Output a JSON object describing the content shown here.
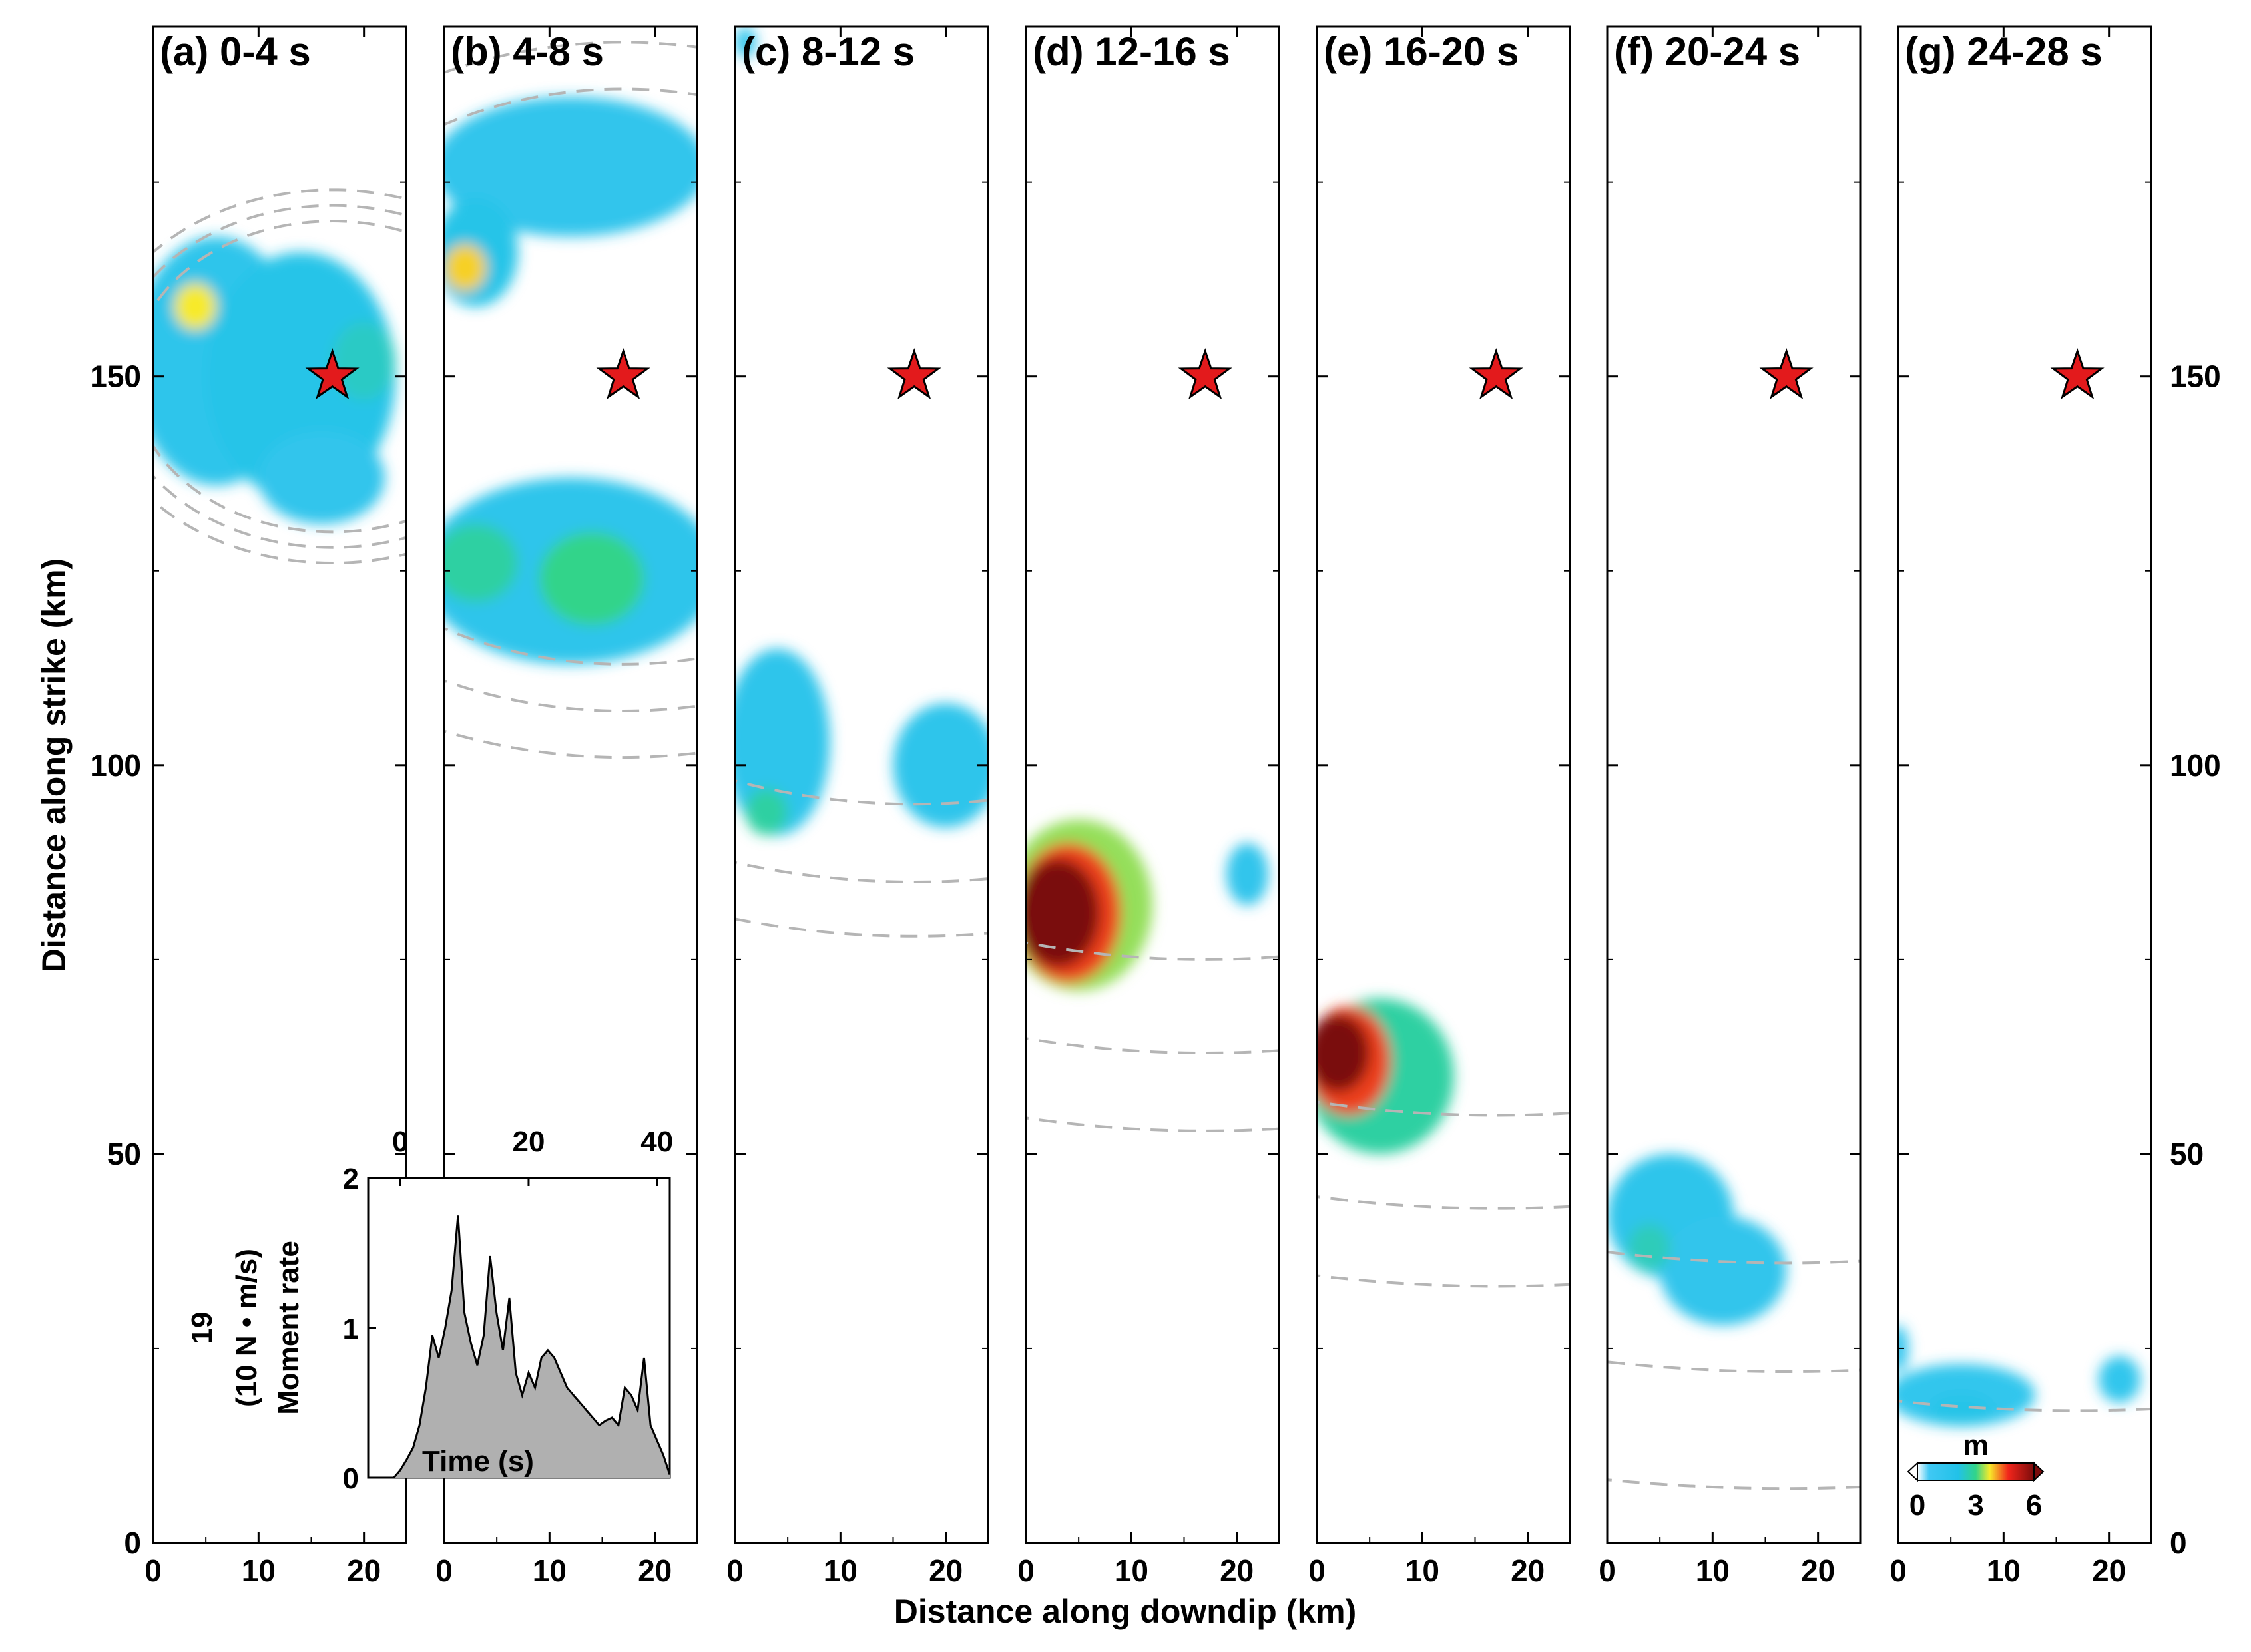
{
  "chart_data": {
    "type": "heatmap",
    "description_note": "",
    "xlabel": "Distance along downdip (km)",
    "ylabel": "Distance along strike (km)",
    "xlim": [
      0,
      24
    ],
    "ylim": [
      0,
      195
    ],
    "x_ticks": [
      0,
      10,
      20
    ],
    "y_ticks": [
      0,
      50,
      100,
      150
    ],
    "hypocenter": {
      "x": 17,
      "y": 150,
      "marker": "star",
      "color": "#e31a1c"
    },
    "colorbar": {
      "label": "m",
      "ticks": [
        "0",
        "3",
        "6"
      ],
      "range": [
        0,
        6
      ]
    },
    "panels": [
      {
        "label": "(a) 0-4 s",
        "patches": [
          {
            "x": 6,
            "y": 152,
            "rx": 8,
            "ry": 16,
            "slip": 1.0
          },
          {
            "x": 14,
            "y": 150,
            "rx": 9,
            "ry": 16,
            "slip": 1.2
          },
          {
            "x": 4,
            "y": 159,
            "rx": 2,
            "ry": 3,
            "slip": 3.0
          },
          {
            "x": 16,
            "y": 137,
            "rx": 6,
            "ry": 6,
            "slip": 0.9
          },
          {
            "x": 20,
            "y": 152,
            "rx": 3,
            "ry": 5,
            "slip": 1.5
          }
        ],
        "rupture_fronts": [
          {
            "cx": 17,
            "cy": 150,
            "r": 20
          },
          {
            "cx": 17,
            "cy": 150,
            "r": 22
          },
          {
            "cx": 17,
            "cy": 150,
            "r": 24
          }
        ]
      },
      {
        "label": "(b) 4-8 s",
        "patches": [
          {
            "x": 12,
            "y": 177,
            "rx": 13,
            "ry": 9,
            "slip": 0.9
          },
          {
            "x": 3,
            "y": 166,
            "rx": 4,
            "ry": 7,
            "slip": 1.2
          },
          {
            "x": 2,
            "y": 164,
            "rx": 2,
            "ry": 3,
            "slip": 3.2
          },
          {
            "x": 12,
            "y": 125,
            "rx": 14,
            "ry": 12,
            "slip": 1.0
          },
          {
            "x": 3,
            "y": 126,
            "rx": 4,
            "ry": 5,
            "slip": 1.8
          },
          {
            "x": 14,
            "y": 124,
            "rx": 5,
            "ry": 6,
            "slip": 2.0
          }
        ],
        "rupture_fronts": [
          {
            "cx": 17,
            "cy": 150,
            "r": 37
          },
          {
            "cx": 17,
            "cy": 150,
            "r": 43
          },
          {
            "cx": 17,
            "cy": 150,
            "r": 49
          }
        ]
      },
      {
        "label": "(c) 8-12 s",
        "patches": [
          {
            "x": 4,
            "y": 103,
            "rx": 5,
            "ry": 12,
            "slip": 1.0
          },
          {
            "x": 20,
            "y": 100,
            "rx": 5,
            "ry": 8,
            "slip": 1.0
          },
          {
            "x": 3,
            "y": 94,
            "rx": 2,
            "ry": 3,
            "slip": 1.8
          },
          {
            "x": 1,
            "y": 193,
            "rx": 1,
            "ry": 2,
            "slip": 0.8
          }
        ],
        "rupture_fronts": [
          {
            "cx": 17,
            "cy": 150,
            "r": 55
          },
          {
            "cx": 17,
            "cy": 150,
            "r": 65
          },
          {
            "cx": 17,
            "cy": 150,
            "r": 72
          }
        ]
      },
      {
        "label": "(d) 12-16 s",
        "patches": [
          {
            "x": 5,
            "y": 82,
            "rx": 7,
            "ry": 11,
            "slip": 2.5
          },
          {
            "x": 4,
            "y": 81,
            "rx": 5,
            "ry": 9,
            "slip": 4.5
          },
          {
            "x": 3,
            "y": 81,
            "rx": 4,
            "ry": 7,
            "slip": 6.0
          },
          {
            "x": 21,
            "y": 86,
            "rx": 2,
            "ry": 4,
            "slip": 0.9
          }
        ],
        "rupture_fronts": [
          {
            "cx": 17,
            "cy": 150,
            "r": 75
          },
          {
            "cx": 17,
            "cy": 150,
            "r": 87
          },
          {
            "cx": 17,
            "cy": 150,
            "r": 97
          }
        ]
      },
      {
        "label": "(e) 16-20 s",
        "patches": [
          {
            "x": 6,
            "y": 60,
            "rx": 7,
            "ry": 10,
            "slip": 1.8
          },
          {
            "x": 3,
            "y": 62,
            "rx": 4,
            "ry": 7,
            "slip": 4.5
          },
          {
            "x": 2,
            "y": 63,
            "rx": 3,
            "ry": 5,
            "slip": 6.0
          }
        ],
        "rupture_fronts": [
          {
            "cx": 17,
            "cy": 150,
            "r": 95
          },
          {
            "cx": 17,
            "cy": 150,
            "r": 107
          },
          {
            "cx": 17,
            "cy": 150,
            "r": 117
          }
        ]
      },
      {
        "label": "(f) 20-24 s",
        "patches": [
          {
            "x": 6,
            "y": 42,
            "rx": 6,
            "ry": 8,
            "slip": 1.0
          },
          {
            "x": 11,
            "y": 35,
            "rx": 6,
            "ry": 7,
            "slip": 0.9
          },
          {
            "x": 4,
            "y": 38,
            "rx": 2,
            "ry": 3,
            "slip": 1.6
          }
        ],
        "rupture_fronts": [
          {
            "cx": 17,
            "cy": 150,
            "r": 114
          },
          {
            "cx": 17,
            "cy": 150,
            "r": 128
          },
          {
            "cx": 17,
            "cy": 150,
            "r": 143
          }
        ]
      },
      {
        "label": "(g) 24-28 s",
        "patches": [
          {
            "x": 6,
            "y": 19,
            "rx": 7,
            "ry": 4,
            "slip": 0.8
          },
          {
            "x": 6,
            "y": 17,
            "rx": 3,
            "ry": 2,
            "slip": 1.2
          },
          {
            "x": 21,
            "y": 21,
            "rx": 2,
            "ry": 3,
            "slip": 0.8
          },
          {
            "x": 0,
            "y": 25,
            "rx": 1,
            "ry": 3,
            "slip": 0.7
          }
        ],
        "rupture_fronts": [
          {
            "cx": 17,
            "cy": 150,
            "r": 133
          }
        ]
      }
    ],
    "inset": {
      "type": "area",
      "xlabel": "Time (s)",
      "ylabel_lines": [
        "19",
        "(10   N • m/s)",
        "Moment rate"
      ],
      "x_ticks": [
        0,
        20,
        40
      ],
      "y_ticks": [
        0,
        1,
        2
      ],
      "xlim": [
        -5,
        42
      ],
      "ylim": [
        0,
        2
      ],
      "fill_color": "#b0b0b0",
      "t": [
        -5,
        -1,
        0,
        1,
        2,
        3,
        4,
        5,
        6,
        7,
        8,
        9,
        10,
        11,
        12,
        13,
        14,
        15,
        16,
        17,
        18,
        19,
        20,
        21,
        22,
        23,
        24,
        25,
        26,
        27,
        28,
        29,
        30,
        31,
        32,
        33,
        34,
        35,
        36,
        37,
        38,
        39,
        40,
        41,
        42
      ],
      "moment_rate": [
        0,
        0,
        0.05,
        0.12,
        0.2,
        0.35,
        0.6,
        0.95,
        0.8,
        1.0,
        1.25,
        1.75,
        1.1,
        0.9,
        0.75,
        0.95,
        1.48,
        1.1,
        0.85,
        1.2,
        0.7,
        0.55,
        0.7,
        0.6,
        0.8,
        0.85,
        0.8,
        0.7,
        0.6,
        0.55,
        0.5,
        0.45,
        0.4,
        0.35,
        0.38,
        0.4,
        0.35,
        0.6,
        0.55,
        0.45,
        0.8,
        0.35,
        0.25,
        0.15,
        0.02
      ]
    }
  }
}
